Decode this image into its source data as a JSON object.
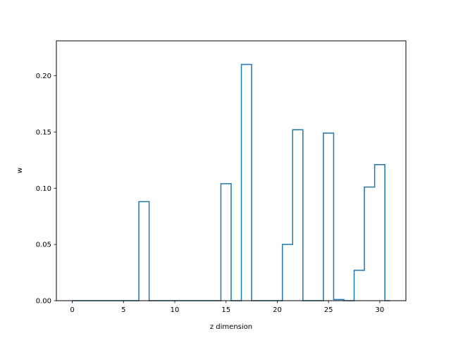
{
  "chart_data": {
    "type": "step",
    "title": "",
    "xlabel": "z dimension",
    "ylabel": "w",
    "xlim": [
      -1.55,
      32.55
    ],
    "ylim": [
      0,
      0.231
    ],
    "xticks": [
      0,
      5,
      10,
      15,
      20,
      25,
      30
    ],
    "yticks": [
      0.0,
      0.05,
      0.1,
      0.15,
      0.2
    ],
    "ytick_labels": [
      "0.00",
      "0.05",
      "0.10",
      "0.15",
      "0.20"
    ],
    "grid": false,
    "x": [
      0,
      1,
      2,
      3,
      4,
      5,
      6,
      7,
      8,
      9,
      10,
      11,
      12,
      13,
      14,
      15,
      16,
      17,
      18,
      19,
      20,
      21,
      22,
      23,
      24,
      25,
      26,
      27,
      28,
      29,
      30,
      31
    ],
    "values": [
      0,
      0,
      0,
      0,
      0,
      0,
      0,
      0.088,
      0,
      0,
      0,
      0,
      0,
      0,
      0,
      0.104,
      0,
      0.21,
      0,
      0,
      0,
      0.05,
      0.152,
      0,
      0,
      0.149,
      0.001,
      0,
      0.027,
      0.101,
      0.121,
      0
    ],
    "series_color": "#1f77b4"
  }
}
